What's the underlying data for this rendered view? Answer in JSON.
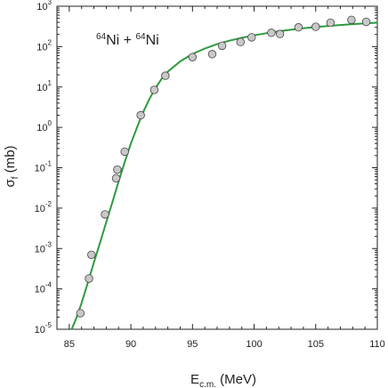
{
  "chart_data": {
    "type": "scatter",
    "annotation": {
      "sup1": "64",
      "base1": "Ni + ",
      "sup2": "64",
      "base2": "Ni"
    },
    "xlabel": {
      "main": "E",
      "sub": "c.m.",
      "rest": " (MeV)"
    },
    "ylabel": {
      "main": "σ",
      "sub": "f",
      "rest": " (mb)"
    },
    "xlim": [
      84,
      110
    ],
    "ylim": [
      1e-05,
      1000
    ],
    "yscale": "log",
    "xticks": [
      85,
      90,
      95,
      100,
      105,
      110
    ],
    "yticks": [
      {
        "value": 1e-05,
        "base": "10",
        "exp": "-5"
      },
      {
        "value": 0.0001,
        "base": "10",
        "exp": "-4"
      },
      {
        "value": 0.001,
        "base": "10",
        "exp": "-3"
      },
      {
        "value": 0.01,
        "base": "10",
        "exp": "-2"
      },
      {
        "value": 0.1,
        "base": "10",
        "exp": "-1"
      },
      {
        "value": 1,
        "base": "10",
        "exp": "0"
      },
      {
        "value": 10,
        "base": "10",
        "exp": "1"
      },
      {
        "value": 100,
        "base": "10",
        "exp": "2"
      },
      {
        "value": 1000,
        "base": "10",
        "exp": "3"
      }
    ],
    "grid": false,
    "series": [
      {
        "kind": "points",
        "color": "#c8c8c8",
        "stroke": "#444444",
        "x": [
          85.9,
          86.6,
          86.8,
          87.9,
          88.8,
          88.9,
          89.5,
          90.8,
          91.9,
          92.8,
          95.0,
          96.6,
          97.4,
          98.9,
          99.8,
          101.4,
          102.1,
          103.6,
          105.0,
          106.2,
          107.9,
          109.1
        ],
        "y": [
          2.5e-05,
          0.00018,
          0.0007,
          0.007,
          0.055,
          0.09,
          0.25,
          2.0,
          8.5,
          19,
          55,
          65,
          105,
          130,
          170,
          220,
          205,
          300,
          310,
          390,
          460,
          410
        ]
      },
      {
        "kind": "line",
        "color": "#2e9a3e",
        "x": [
          85.2,
          85.6,
          86.0,
          86.5,
          87.0,
          87.5,
          88.0,
          88.5,
          89.0,
          89.5,
          90.0,
          90.5,
          91.0,
          91.5,
          92.0,
          92.5,
          93.0,
          94.0,
          95.0,
          96.0,
          97.0,
          98.0,
          99.0,
          100.0,
          101.0,
          102.0,
          103.0,
          104.0,
          105.0,
          106.0,
          107.0,
          108.0,
          109.0,
          110.0
        ],
        "y": [
          1e-05,
          2e-05,
          4.5e-05,
          0.00014,
          0.00045,
          0.0014,
          0.0045,
          0.014,
          0.045,
          0.14,
          0.4,
          1.0,
          2.4,
          5.0,
          9.5,
          16,
          24,
          43,
          66,
          90,
          115,
          140,
          165,
          190,
          215,
          240,
          262,
          284,
          305,
          324,
          343,
          360,
          376,
          392
        ]
      }
    ]
  }
}
